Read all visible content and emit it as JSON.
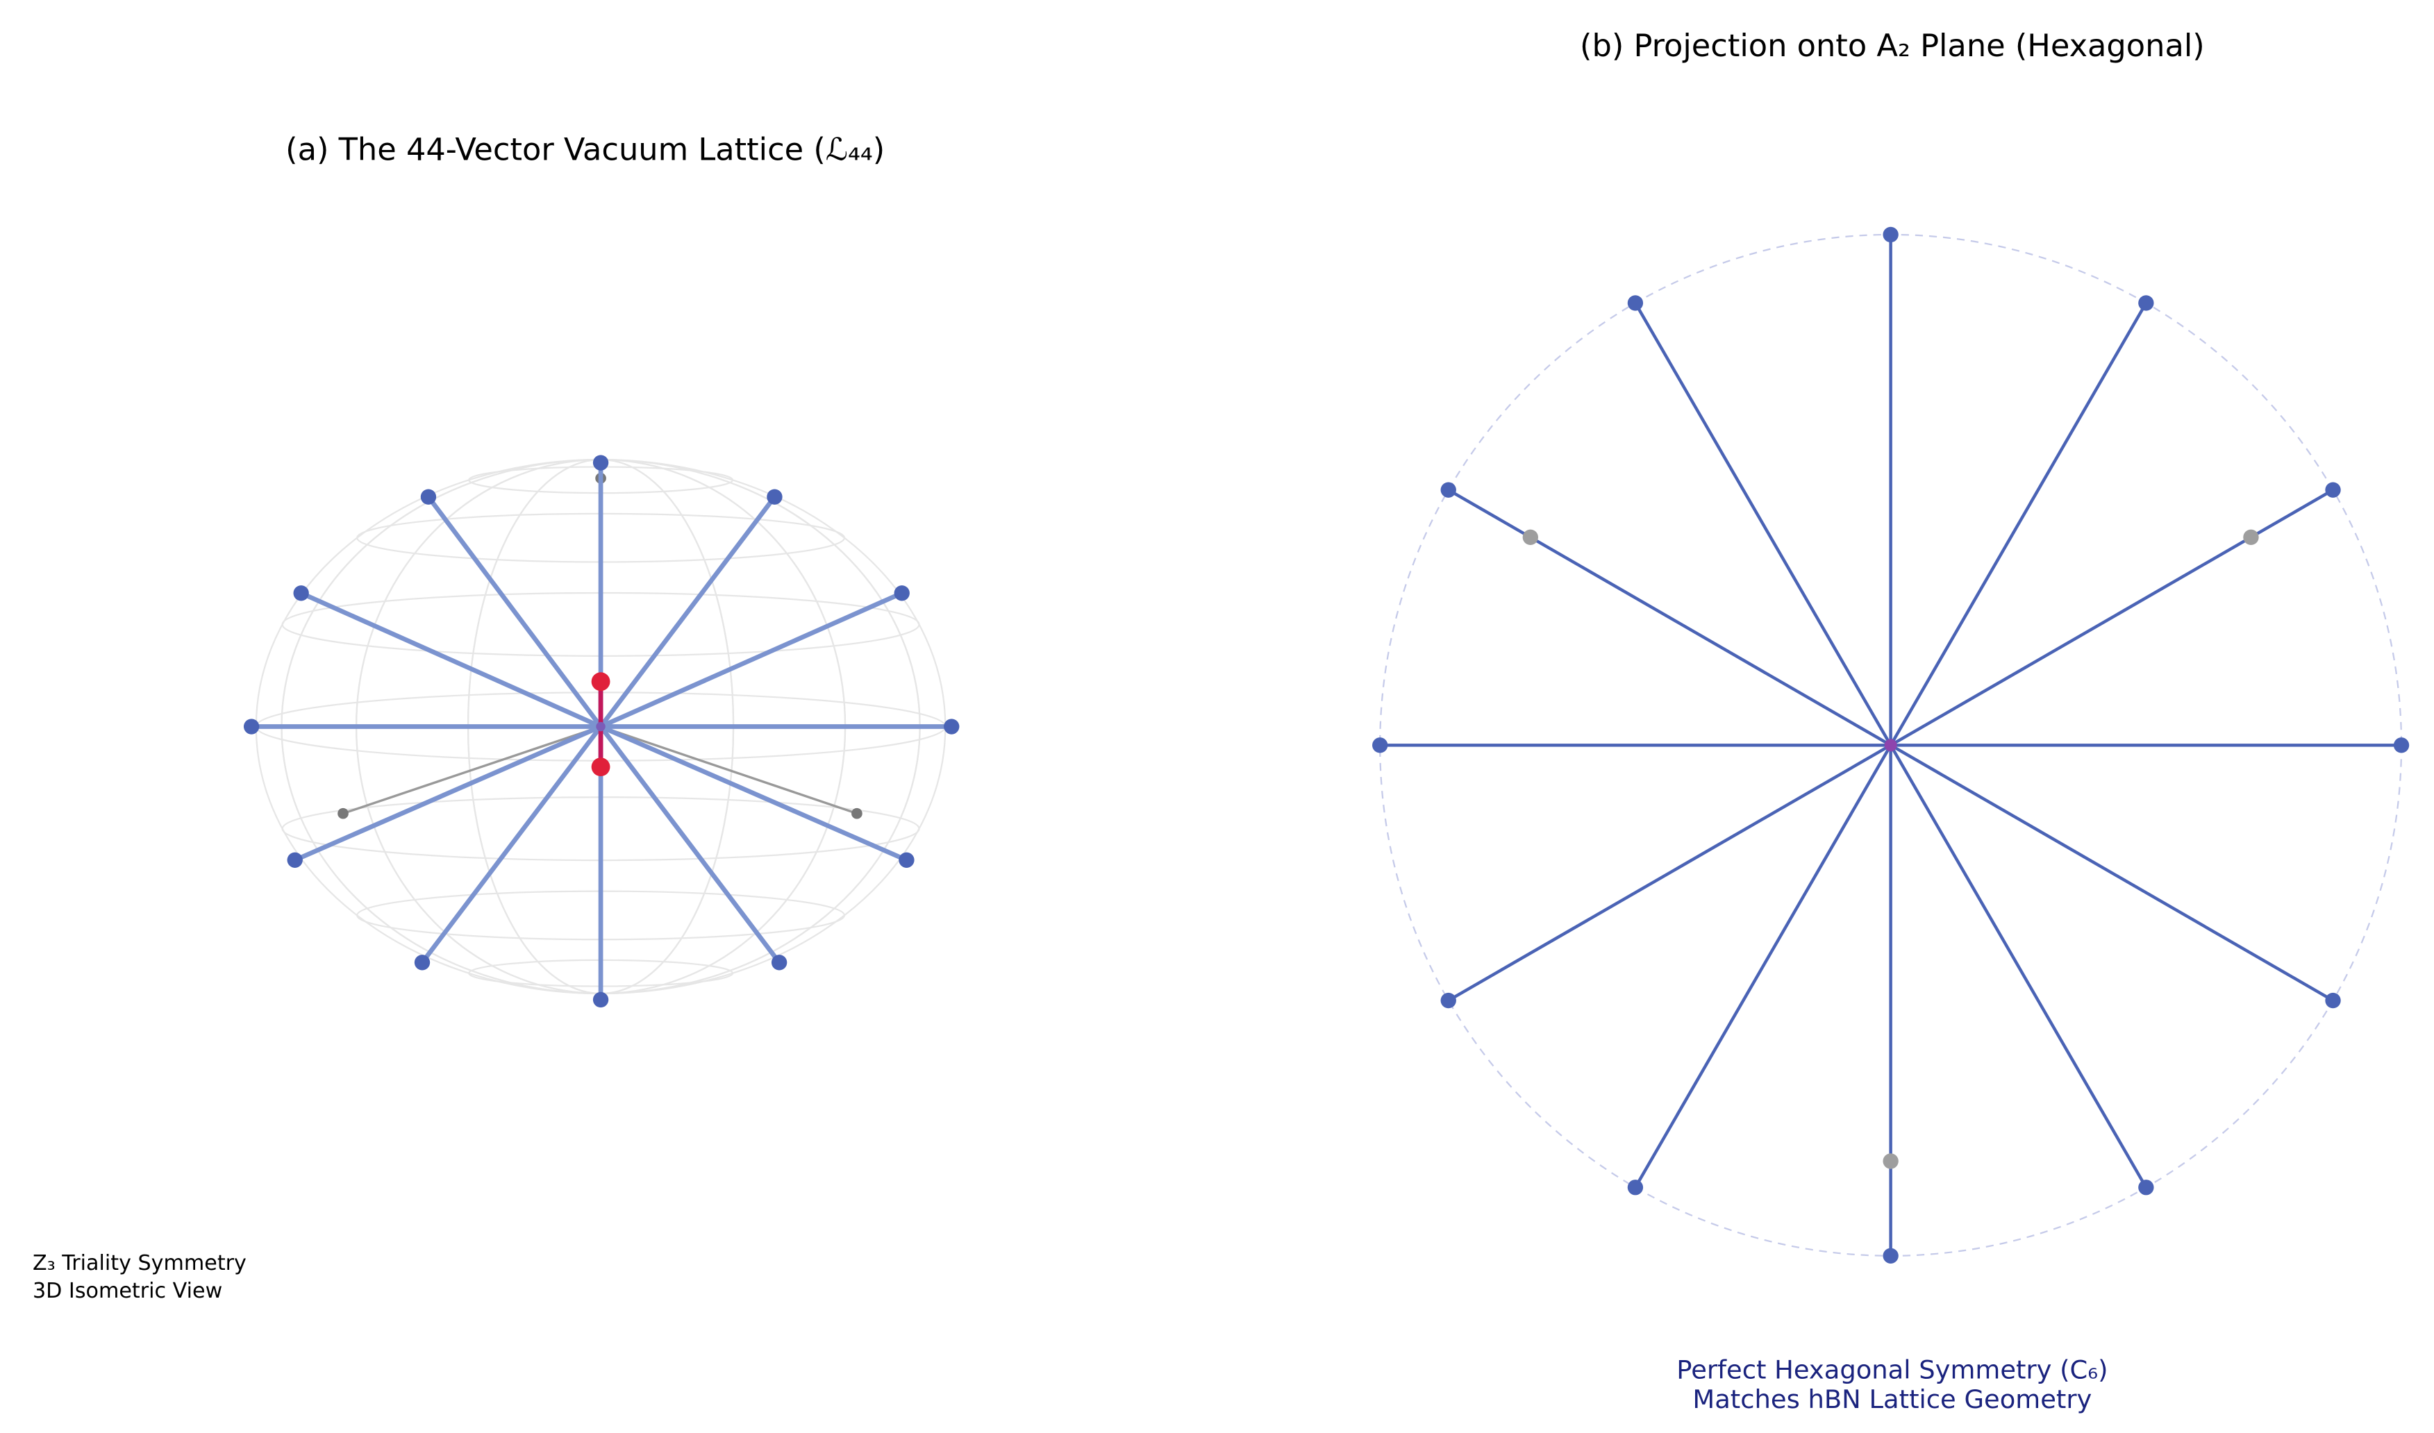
{
  "panel_a": {
    "title": "(a) The 44-Vector Vacuum Lattice (ℒ₄₄)",
    "notes": [
      "Z₃ Triality Symmetry",
      "3D Isometric View"
    ]
  },
  "panel_b": {
    "title": "(b) Projection onto A₂ Plane (Hexagonal)",
    "notes": [
      "Perfect Hexagonal Symmetry (C₆)",
      "Matches hBN Lattice Geometry"
    ]
  }
}
